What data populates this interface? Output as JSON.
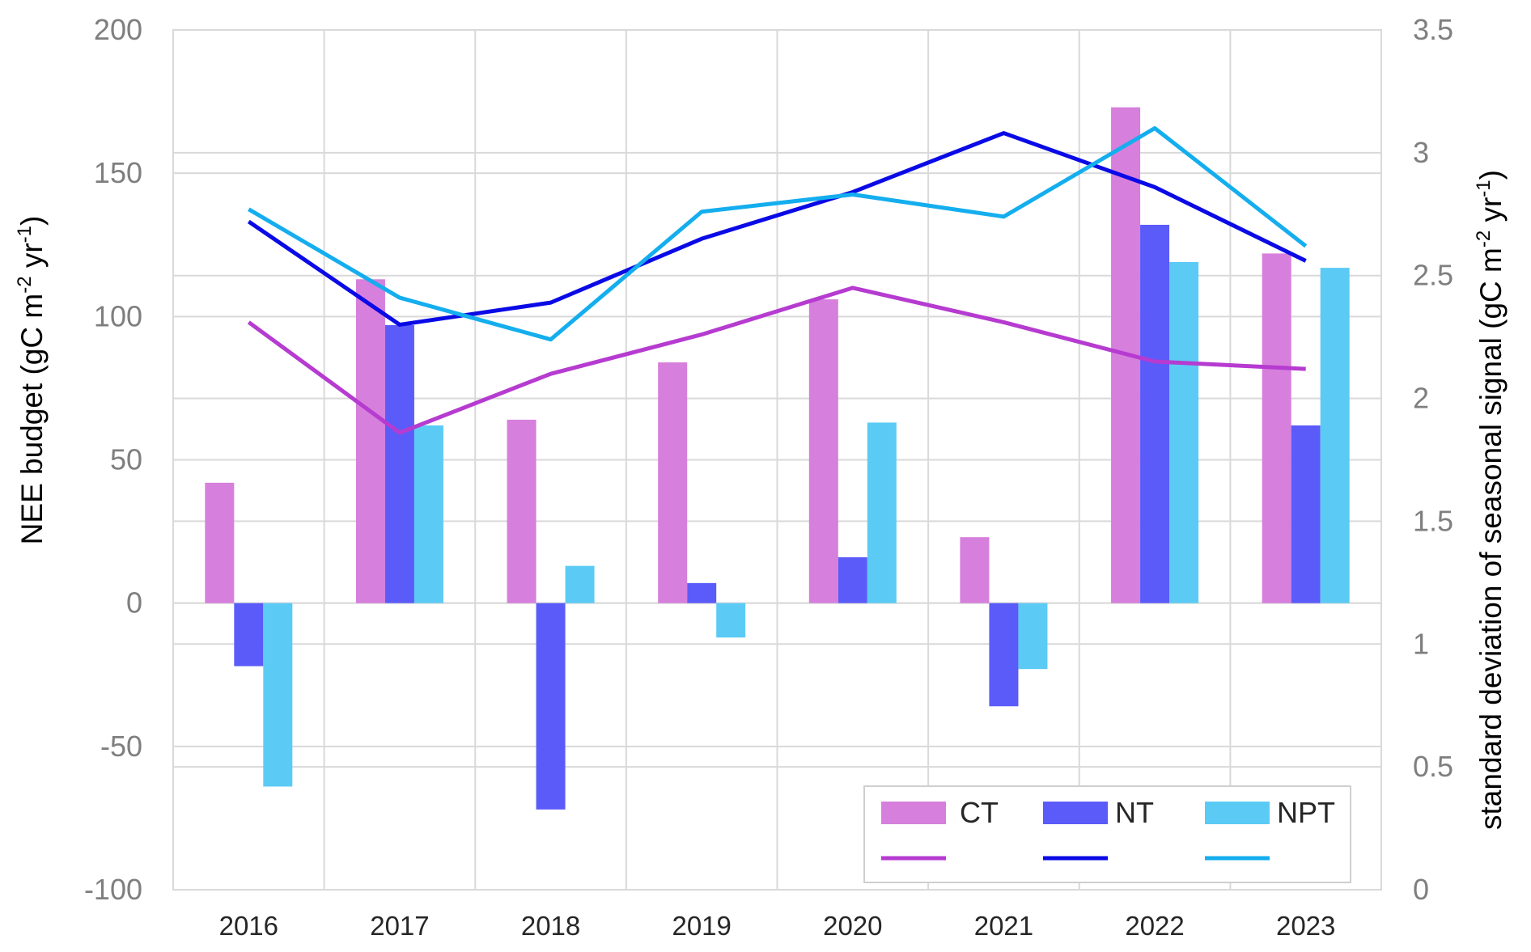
{
  "chart_data": {
    "type": "bar",
    "categories": [
      "2016",
      "2017",
      "2018",
      "2019",
      "2020",
      "2021",
      "2022",
      "2023"
    ],
    "series": [
      {
        "name": "CT",
        "kind": "bar",
        "axis": "left",
        "color": "#d67fdc",
        "values": [
          42,
          113,
          64,
          84,
          106,
          23,
          173,
          122
        ]
      },
      {
        "name": "NT",
        "kind": "bar",
        "axis": "left",
        "color": "#5b5bfa",
        "values": [
          -22,
          97,
          -72,
          7,
          16,
          -36,
          132,
          62
        ]
      },
      {
        "name": "NPT",
        "kind": "bar",
        "axis": "left",
        "color": "#5bcbf5",
        "values": [
          -64,
          62,
          13,
          -12,
          63,
          -23,
          119,
          117
        ]
      },
      {
        "name": "",
        "legend_of": "CT",
        "kind": "line",
        "axis": "right",
        "color": "#b63bd0",
        "values": [
          2.31,
          1.86,
          2.1,
          2.26,
          2.45,
          2.31,
          2.15,
          2.12
        ]
      },
      {
        "name": "",
        "legend_of": "NT",
        "kind": "line",
        "axis": "right",
        "color": "#0a0ae6",
        "values": [
          2.72,
          2.3,
          2.39,
          2.65,
          2.84,
          3.08,
          2.86,
          2.56
        ]
      },
      {
        "name": "",
        "legend_of": "NPT",
        "kind": "line",
        "axis": "right",
        "color": "#14aeee",
        "values": [
          2.77,
          2.41,
          2.24,
          2.76,
          2.83,
          2.74,
          3.1,
          2.62
        ]
      }
    ],
    "ylim": [
      -100,
      200
    ],
    "yticks": [
      "200",
      "150",
      "100",
      "50",
      "0",
      "-50",
      "-100"
    ],
    "y2lim": [
      0,
      3.5
    ],
    "y2ticks": [
      "3.5",
      "3",
      "2.5",
      "2",
      "1.5",
      "1",
      "0.5",
      "0"
    ],
    "ylabel": {
      "pre": "NEE budget (gC m",
      "sup1": "-2",
      "mid": " yr",
      "sup2": "-1",
      "post": ")"
    },
    "y2label": {
      "pre": "standard deviation of seasonal signal (gC m",
      "sup1": "-2",
      "mid": " yr",
      "sup2": "-1",
      "post": ")"
    },
    "xlabel": "",
    "grid": true,
    "legend": {
      "position": "bottom-right",
      "labels": [
        "CT",
        "NT",
        "NPT"
      ]
    }
  }
}
